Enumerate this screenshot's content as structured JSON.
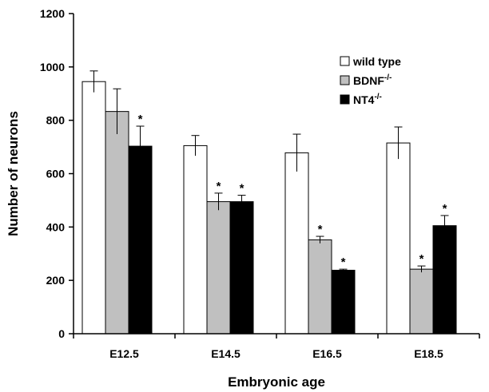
{
  "chart_data": {
    "type": "bar",
    "categories": [
      "E12.5",
      "E14.5",
      "E16.5",
      "E18.5"
    ],
    "series": [
      {
        "name": "wild type",
        "sup": "",
        "color": "#ffffff",
        "values": [
          945,
          705,
          678,
          715
        ],
        "errors": [
          40,
          38,
          70,
          60
        ],
        "significant": [
          false,
          false,
          false,
          false
        ]
      },
      {
        "name": "BDNF",
        "sup": "-/-",
        "color": "#c0c0c0",
        "values": [
          833,
          495,
          352,
          242
        ],
        "errors": [
          85,
          32,
          13,
          12
        ],
        "significant": [
          false,
          true,
          true,
          true
        ]
      },
      {
        "name": "NT4",
        "sup": "-/-",
        "color": "#000000",
        "values": [
          703,
          495,
          238,
          405
        ],
        "errors": [
          75,
          24,
          4,
          38
        ],
        "significant": [
          true,
          true,
          true,
          true
        ]
      }
    ],
    "significance_marker": "*",
    "xlabel": "Embryonic age",
    "ylabel": "Number of neurons",
    "ylim": [
      0,
      1200
    ],
    "yticks": [
      0,
      200,
      400,
      600,
      800,
      1000,
      1200
    ],
    "legend_position": "top-right",
    "grid": false
  }
}
